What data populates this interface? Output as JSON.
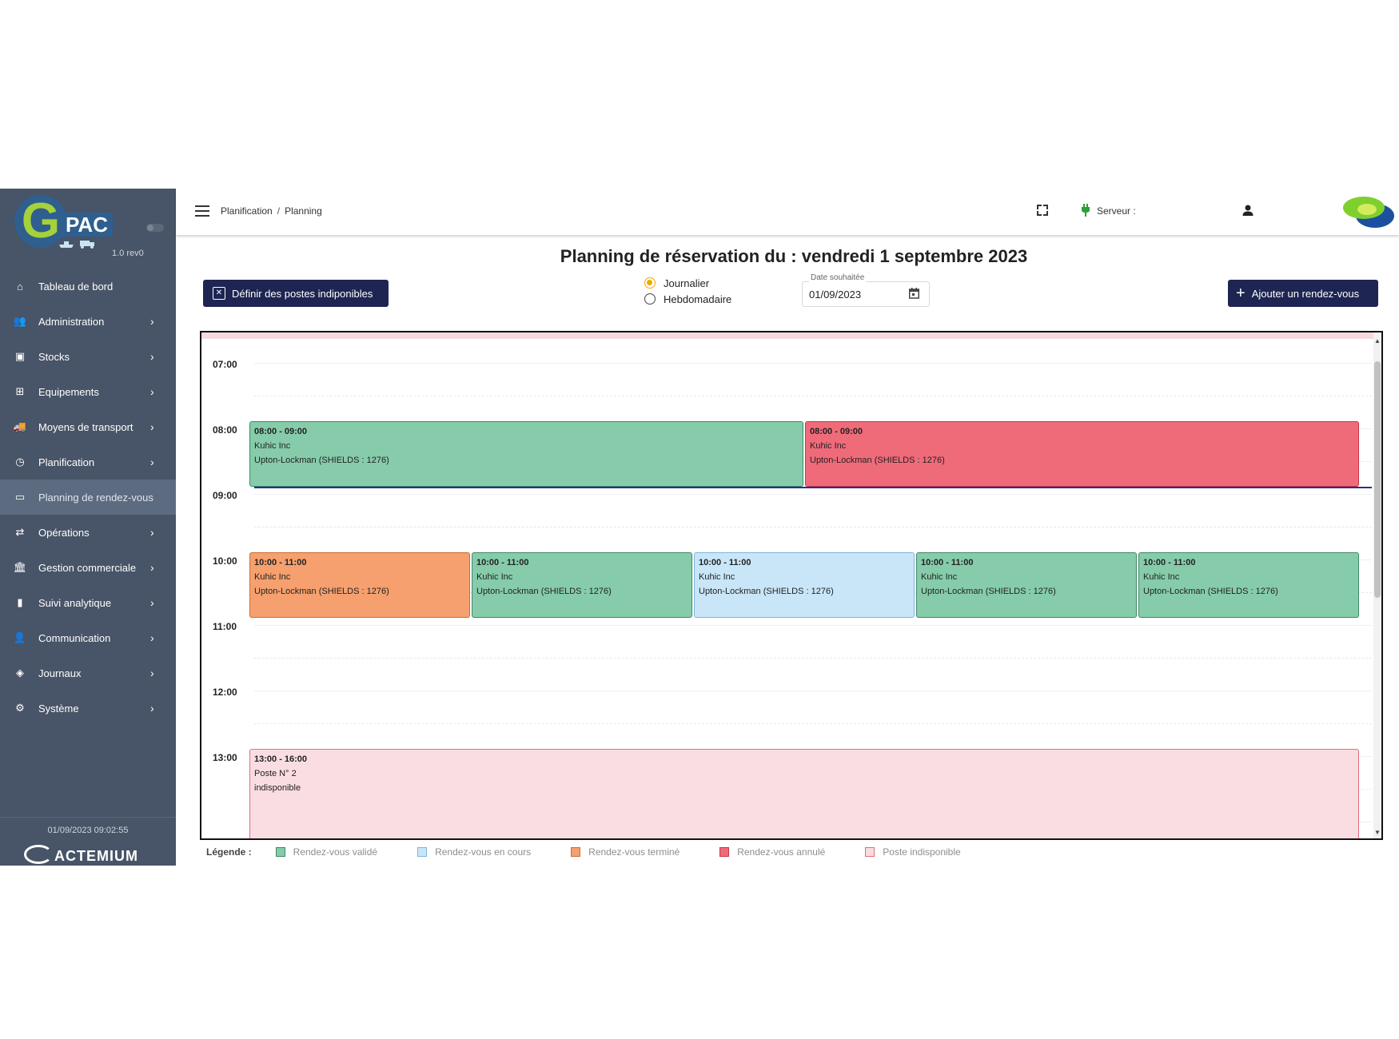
{
  "sidebar": {
    "logo_letter": "G",
    "logo_text": "PAC",
    "version": "1.0 rev0",
    "items": [
      {
        "label": "Tableau de bord",
        "icon": "home-icon",
        "glyph": "⌂",
        "chevron": false,
        "active": false
      },
      {
        "label": "Administration",
        "icon": "users-icon",
        "glyph": "👥",
        "chevron": true,
        "active": false
      },
      {
        "label": "Stocks",
        "icon": "archive-icon",
        "glyph": "▣",
        "chevron": true,
        "active": false
      },
      {
        "label": "Equipements",
        "icon": "sitemap-icon",
        "glyph": "⊞",
        "chevron": true,
        "active": false
      },
      {
        "label": "Moyens de transport",
        "icon": "truck-icon",
        "glyph": "🚚",
        "chevron": true,
        "active": false
      },
      {
        "label": "Planification",
        "icon": "clock-icon",
        "glyph": "◷",
        "chevron": true,
        "active": false
      },
      {
        "label": "Planning de rendez-vous",
        "icon": "calendar-icon",
        "glyph": "▭",
        "chevron": false,
        "active": true
      },
      {
        "label": "Opérations",
        "icon": "exchange-icon",
        "glyph": "⇄",
        "chevron": true,
        "active": false
      },
      {
        "label": "Gestion commerciale",
        "icon": "bank-icon",
        "glyph": "🏛",
        "chevron": true,
        "active": false
      },
      {
        "label": "Suivi analytique",
        "icon": "bar-chart-icon",
        "glyph": "▮",
        "chevron": true,
        "active": false
      },
      {
        "label": "Communication",
        "icon": "user-comment-icon",
        "glyph": "👤",
        "chevron": true,
        "active": false
      },
      {
        "label": "Journaux",
        "icon": "box-open-icon",
        "glyph": "◈",
        "chevron": true,
        "active": false
      },
      {
        "label": "Système",
        "icon": "gear-icon",
        "glyph": "⚙",
        "chevron": true,
        "active": false
      }
    ],
    "footer_datetime": "01/09/2023 09:02:55",
    "footer_brand": "ACTEMIUM"
  },
  "topbar": {
    "breadcrumb": [
      "Planification",
      "Planning"
    ],
    "server_label": "Serveur :"
  },
  "main": {
    "title": "Planning de réservation du : vendredi 1 septembre 2023",
    "define_button": "Définir des postes indiponibles",
    "view_options": [
      {
        "label": "Journalier",
        "selected": true
      },
      {
        "label": "Hebdomadaire",
        "selected": false
      }
    ],
    "date_label": "Date souhaitée",
    "date_value": "01/09/2023",
    "add_button": "Ajouter un rendez-vous"
  },
  "calendar": {
    "hours": [
      "07:00",
      "08:00",
      "09:00",
      "10:00",
      "11:00",
      "12:00",
      "13:00"
    ],
    "now_time": "09:00",
    "events": [
      {
        "time": "08:00 - 09:00",
        "line1": "Kuhic Inc",
        "line2": "Upton-Lockman (SHIELDS : 1276)",
        "status": "validated",
        "start": 8,
        "end": 9,
        "col": 0,
        "cols": 2
      },
      {
        "time": "08:00 - 09:00",
        "line1": "Kuhic Inc",
        "line2": "Upton-Lockman (SHIELDS : 1276)",
        "status": "cancel",
        "start": 8,
        "end": 9,
        "col": 1,
        "cols": 2
      },
      {
        "time": "10:00 - 11:00",
        "line1": "Kuhic Inc",
        "line2": "Upton-Lockman (SHIELDS : 1276)",
        "status": "done",
        "start": 10,
        "end": 11,
        "col": 0,
        "cols": 5
      },
      {
        "time": "10:00 - 11:00",
        "line1": "Kuhic Inc",
        "line2": "Upton-Lockman (SHIELDS : 1276)",
        "status": "validated",
        "start": 10,
        "end": 11,
        "col": 1,
        "cols": 5
      },
      {
        "time": "10:00 - 11:00",
        "line1": "Kuhic Inc",
        "line2": "Upton-Lockman (SHIELDS : 1276)",
        "status": "running",
        "start": 10,
        "end": 11,
        "col": 2,
        "cols": 5
      },
      {
        "time": "10:00 - 11:00",
        "line1": "Kuhic Inc",
        "line2": "Upton-Lockman (SHIELDS : 1276)",
        "status": "validated",
        "start": 10,
        "end": 11,
        "col": 3,
        "cols": 5
      },
      {
        "time": "10:00 - 11:00",
        "line1": "Kuhic Inc",
        "line2": "Upton-Lockman (SHIELDS : 1276)",
        "status": "validated",
        "start": 10,
        "end": 11,
        "col": 4,
        "cols": 5
      },
      {
        "time": "13:00 - 16:00",
        "line1": "Poste N° 2",
        "line2": "indisponible",
        "status": "unavail",
        "start": 13,
        "end": 16,
        "col": 0,
        "cols": 1
      }
    ]
  },
  "legend": {
    "title": "Légende :",
    "items": [
      {
        "label": "Rendez-vous validé",
        "color": "#86ccaa",
        "border": "#3e8a66"
      },
      {
        "label": "Rendez-vous en cours",
        "color": "#c9e6f8",
        "border": "#7bb5de"
      },
      {
        "label": "Rendez-vous terminé",
        "color": "#f5a06e",
        "border": "#cf6d35"
      },
      {
        "label": "Rendez-vous annulé",
        "color": "#ef6b7a",
        "border": "#c93545"
      },
      {
        "label": "Poste indisponible",
        "color": "#fadde2",
        "border": "#e36b7c"
      }
    ]
  }
}
